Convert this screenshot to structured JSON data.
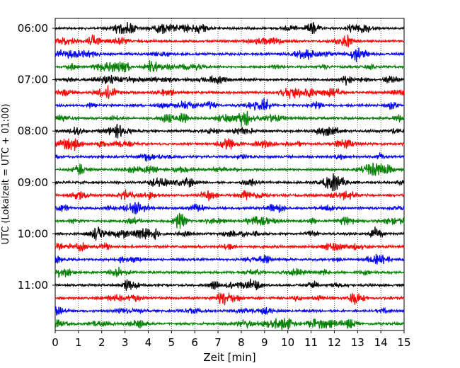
{
  "chart_data": {
    "type": "line",
    "chart_kind": "helicorder",
    "xlabel": "Zeit  [min]",
    "ylabel": "UTC (Lokalzeit = UTC + 01:00)",
    "xlim": [
      0,
      15
    ],
    "x_ticks": [
      0,
      1,
      2,
      3,
      4,
      5,
      6,
      7,
      8,
      9,
      10,
      11,
      12,
      13,
      14,
      15
    ],
    "y_tick_labels": [
      "06:00",
      "07:00",
      "08:00",
      "09:00",
      "10:00",
      "11:00"
    ],
    "trace_interval_minutes": 15,
    "trace_count": 24,
    "start_time_utc": "06:00",
    "trace_colors": [
      "#000000",
      "#ff0000",
      "#0000ff",
      "#007f00"
    ],
    "x_grid": "dotted",
    "amplitude_note": "continuous seismic noise"
  }
}
